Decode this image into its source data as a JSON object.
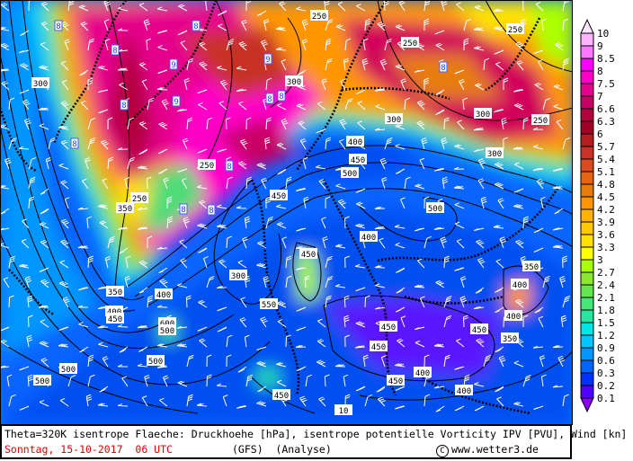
{
  "map": {
    "type": "weather-map",
    "region": "Europe / North Atlantic",
    "contour_labels": [
      "250",
      "250",
      "250",
      "250",
      "300",
      "300",
      "300",
      "300",
      "300",
      "250",
      "250",
      "350",
      "400",
      "450",
      "500",
      "450",
      "500",
      "400",
      "450",
      "300",
      "350",
      "400",
      "450",
      "400",
      "550",
      "600",
      "500",
      "500",
      "500",
      "500",
      "450",
      "450",
      "450",
      "350",
      "350",
      "400",
      "400",
      "400",
      "450",
      "400",
      "450",
      "10"
    ],
    "ipv_labels": [
      "8",
      "8",
      "8",
      "9",
      "9",
      "8",
      "9",
      "8",
      "8",
      "8",
      "8",
      "8",
      "8",
      "8"
    ]
  },
  "colorbar": {
    "labels": [
      "10",
      "9",
      "8.5",
      "8",
      "7.5",
      "7",
      "6.6",
      "6.3",
      "6",
      "5.7",
      "5.4",
      "5.1",
      "4.8",
      "4.5",
      "4.2",
      "3.9",
      "3.6",
      "3.3",
      "3",
      "2.7",
      "2.4",
      "2.1",
      "1.8",
      "1.5",
      "1.2",
      "0.9",
      "0.6",
      "0.3",
      "0.2",
      "0.1"
    ],
    "top_triangle_color": "#ffe8ff",
    "bottom_triangle_color": "#8c00ff",
    "colors": [
      "#ffb4ff",
      "#ff78ff",
      "#ff00ff",
      "#ff00c8",
      "#e6008c",
      "#c80064",
      "#b4003c",
      "#a00028",
      "#b41e1e",
      "#c83228",
      "#dc4b1e",
      "#e66414",
      "#e67d0a",
      "#ff9600",
      "#ffb400",
      "#ffc800",
      "#ffe100",
      "#ffff00",
      "#aaff00",
      "#8ce632",
      "#64e650",
      "#46e678",
      "#28e6a0",
      "#00e6e6",
      "#00c8ff",
      "#0096ff",
      "#0064ff",
      "#0032ff",
      "#5000ff"
    ]
  },
  "footer": {
    "line1": "Theta=320K isentrope Flaeche: Druckhoehe [hPa], isentrope potentielle Vorticity IPV [PVU], Wind [kn]",
    "date": "Sonntag, 15-10-2017  06 UTC",
    "model": "(GFS)  (Analyse)",
    "copyright_symbol": "C",
    "site": "www.wetter3.de"
  }
}
